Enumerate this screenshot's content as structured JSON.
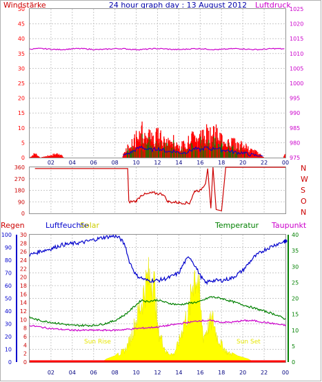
{
  "header": {
    "left_title": "Windstärke",
    "center_title": "24 hour graph day : 13 August 2012",
    "right_title": "Luftdruck"
  },
  "colors": {
    "wind": "#ff0000",
    "gust": "#ff0000",
    "wind_avg": "#008000",
    "wind_blue": "#0000cc",
    "pressure": "#cc00cc",
    "direction": "#cc0000",
    "humidity": "#0000cc",
    "solar": "#ffff00",
    "temperature": "#008000",
    "dewpoint": "#cc00cc",
    "rain": "#ff0000",
    "grid": "#c8c8c8"
  },
  "chart_data": [
    {
      "type": "bar",
      "name_left": "Windstärke",
      "name_right": "Luftdruck",
      "left_axis": {
        "ticks": [
          "0",
          "5",
          "10",
          "15",
          "20",
          "25",
          "30",
          "35",
          "40",
          "45",
          "50"
        ],
        "ylim": [
          0,
          50
        ]
      },
      "right_axis": {
        "ticks": [
          "975",
          "980",
          "985",
          "990",
          "995",
          "1000",
          "1005",
          "1010",
          "1015",
          "1020",
          "1025"
        ],
        "ylim": [
          975,
          1025
        ]
      },
      "x_ticks": [
        "02",
        "04",
        "06",
        "08",
        "10",
        "12",
        "14",
        "16",
        "18",
        "20",
        "22",
        "00"
      ],
      "pressure_level": 1011.5,
      "gust_envelope": [
        [
          0,
          0
        ],
        [
          0.5,
          2
        ],
        [
          1,
          0
        ],
        [
          2.8,
          2
        ],
        [
          3.2,
          0
        ],
        [
          8.7,
          0
        ],
        [
          8.9,
          3
        ],
        [
          9.5,
          6
        ],
        [
          10,
          10
        ],
        [
          10.5,
          13
        ],
        [
          11,
          10
        ],
        [
          11.5,
          9
        ],
        [
          12,
          11
        ],
        [
          12.5,
          9
        ],
        [
          13,
          7
        ],
        [
          13.5,
          8
        ],
        [
          14,
          6
        ],
        [
          14.5,
          6
        ],
        [
          15,
          8
        ],
        [
          15.5,
          11
        ],
        [
          16,
          9
        ],
        [
          16.5,
          12
        ],
        [
          17,
          10
        ],
        [
          17.5,
          12
        ],
        [
          18,
          9
        ],
        [
          18.5,
          9
        ],
        [
          19,
          7
        ],
        [
          19.5,
          6
        ],
        [
          20,
          6
        ],
        [
          20.5,
          4
        ],
        [
          21,
          3
        ],
        [
          21.5,
          2
        ],
        [
          22,
          0
        ],
        [
          23.8,
          0
        ],
        [
          24,
          2
        ]
      ]
    },
    {
      "type": "line",
      "right_labels": [
        "N",
        "W",
        "S",
        "O",
        "N"
      ],
      "left_axis": {
        "ticks": [
          "0",
          "90",
          "180",
          "270",
          "360"
        ],
        "ylim": [
          0,
          360
        ]
      },
      "direction": [
        [
          0.5,
          350
        ],
        [
          8.3,
          350
        ],
        [
          9.2,
          350
        ],
        [
          9.3,
          90
        ],
        [
          10,
          95
        ],
        [
          10.5,
          145
        ],
        [
          11,
          150
        ],
        [
          11.5,
          160
        ],
        [
          12.5,
          150
        ],
        [
          13,
          90
        ],
        [
          14,
          85
        ],
        [
          15,
          80
        ],
        [
          15.5,
          175
        ],
        [
          16,
          180
        ],
        [
          16.3,
          210
        ],
        [
          16.5,
          240
        ],
        [
          16.7,
          350
        ],
        [
          17,
          40
        ],
        [
          17.2,
          360
        ],
        [
          17.5,
          30
        ],
        [
          18,
          20
        ],
        [
          18.4,
          360
        ],
        [
          24,
          360
        ]
      ]
    },
    {
      "type": "line",
      "labels": {
        "rain": "Regen",
        "humidity": "Luftfeuchte",
        "solar": "Solar",
        "temperature": "Temperatur",
        "dewpoint": "Taupunkt",
        "sunrise": "Sun Rise",
        "sunset": "Sun Set"
      },
      "humidity_axis": {
        "ticks": [
          "0",
          "10",
          "20",
          "30",
          "40",
          "50",
          "60",
          "70",
          "80",
          "90",
          "100"
        ],
        "ylim": [
          0,
          100
        ]
      },
      "temp_axis_left": {
        "ticks": [
          "0",
          "2",
          "4",
          "6",
          "8",
          "10",
          "12",
          "14",
          "16",
          "18",
          "20",
          "22",
          "24",
          "26",
          "28",
          "30"
        ],
        "ylim": [
          0,
          30
        ]
      },
      "temp_axis_right": {
        "ticks": [
          "0",
          "5",
          "10",
          "15",
          "20",
          "25",
          "30",
          "35",
          "40"
        ],
        "ylim": [
          0,
          40
        ]
      },
      "humidity": [
        [
          0,
          84
        ],
        [
          1,
          87
        ],
        [
          2,
          89
        ],
        [
          3,
          92
        ],
        [
          4,
          93
        ],
        [
          5,
          94
        ],
        [
          6,
          96
        ],
        [
          7,
          98
        ],
        [
          8,
          99
        ],
        [
          8.5,
          97
        ],
        [
          9,
          91
        ],
        [
          9.3,
          80
        ],
        [
          10,
          68
        ],
        [
          11,
          64
        ],
        [
          12,
          64
        ],
        [
          13,
          66
        ],
        [
          14,
          70
        ],
        [
          14.5,
          78
        ],
        [
          15,
          83
        ],
        [
          15.5,
          76
        ],
        [
          16,
          68
        ],
        [
          16.5,
          62
        ],
        [
          17,
          64
        ],
        [
          18,
          64
        ],
        [
          19,
          66
        ],
        [
          20,
          72
        ],
        [
          21,
          82
        ],
        [
          22,
          88
        ],
        [
          23,
          92
        ],
        [
          24,
          95
        ]
      ],
      "temperature": [
        [
          0,
          14
        ],
        [
          1,
          13
        ],
        [
          2,
          12.5
        ],
        [
          3,
          12
        ],
        [
          4,
          11.5
        ],
        [
          5,
          11.5
        ],
        [
          6,
          11.5
        ],
        [
          7,
          12
        ],
        [
          8,
          13
        ],
        [
          9,
          15
        ],
        [
          10,
          18
        ],
        [
          10.5,
          19.5
        ],
        [
          11,
          19
        ],
        [
          12,
          19.5
        ],
        [
          13,
          18.5
        ],
        [
          14,
          18
        ],
        [
          15,
          18.5
        ],
        [
          16,
          19
        ],
        [
          17,
          20.5
        ],
        [
          18,
          20
        ],
        [
          19,
          19
        ],
        [
          20,
          18
        ],
        [
          21,
          17
        ],
        [
          22,
          16
        ],
        [
          23,
          15
        ],
        [
          24,
          13.5
        ]
      ],
      "dewpoint": [
        [
          0,
          11.5
        ],
        [
          2,
          10.5
        ],
        [
          4,
          10
        ],
        [
          6,
          10
        ],
        [
          8,
          10
        ],
        [
          10,
          10.5
        ],
        [
          12,
          11
        ],
        [
          14,
          12
        ],
        [
          15,
          12.5
        ],
        [
          16,
          13
        ],
        [
          17,
          13
        ],
        [
          18,
          12.5
        ],
        [
          19,
          12.5
        ],
        [
          20,
          13
        ],
        [
          21,
          13
        ],
        [
          22,
          12.5
        ],
        [
          23,
          12
        ],
        [
          24,
          11.5
        ]
      ],
      "solar": [
        [
          0,
          0
        ],
        [
          6.8,
          0
        ],
        [
          7.2,
          1
        ],
        [
          8,
          2
        ],
        [
          9,
          5
        ],
        [
          9.5,
          10
        ],
        [
          10,
          17
        ],
        [
          10.5,
          24
        ],
        [
          11,
          33
        ],
        [
          11.5,
          35
        ],
        [
          11.8,
          28
        ],
        [
          12,
          13
        ],
        [
          12.4,
          9
        ],
        [
          12.8,
          4
        ],
        [
          13.5,
          3
        ],
        [
          14,
          8
        ],
        [
          14.5,
          16
        ],
        [
          15,
          21
        ],
        [
          15.4,
          36
        ],
        [
          15.8,
          34
        ],
        [
          16,
          22
        ],
        [
          16.3,
          10
        ],
        [
          16.8,
          15
        ],
        [
          17.2,
          17
        ],
        [
          17.6,
          10
        ],
        [
          18,
          7
        ],
        [
          18.5,
          4
        ],
        [
          19.5,
          2
        ],
        [
          20.5,
          1
        ],
        [
          21,
          0
        ],
        [
          24,
          0
        ]
      ],
      "rain": 0
    }
  ]
}
